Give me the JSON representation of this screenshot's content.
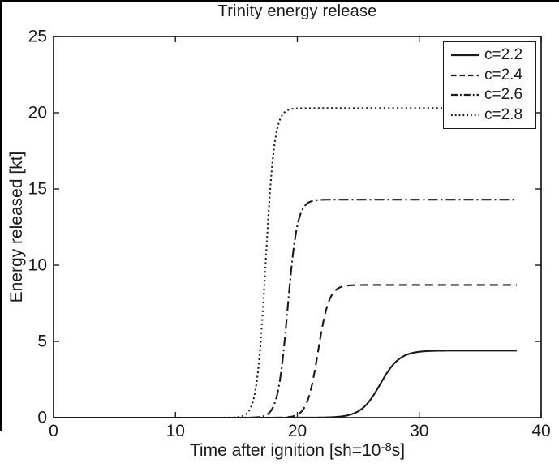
{
  "figure": {
    "title": "Trinity energy release",
    "x_axis": {
      "label_prefix": "Time after ignition [sh=10",
      "label_sup": "-8",
      "label_suffix": "s]",
      "ticks": [
        "0",
        "10",
        "20",
        "30",
        "40"
      ]
    },
    "y_axis": {
      "label": "Energy released [kt]",
      "ticks": [
        "0",
        "5",
        "10",
        "15",
        "20",
        "25"
      ]
    }
  },
  "chart_data": {
    "type": "line",
    "title": "Trinity energy release",
    "xlabel": "Time after ignition [sh=10^-8 s]",
    "ylabel": "Energy released [kt]",
    "xlim": [
      0,
      40
    ],
    "ylim": [
      0,
      25
    ],
    "x_tick_values": [
      0,
      10,
      20,
      30,
      40
    ],
    "y_tick_values": [
      0,
      5,
      10,
      15,
      20,
      25
    ],
    "grid": false,
    "legend_position": "top-right",
    "line_color": "#1a1a1a",
    "background_color": "#ffffff",
    "model": "E(t) = plateau_kt / (1 + exp(-(t - t_mid)/rise_width)), sampled for t in [x_start, x_end]",
    "x_start": 0,
    "x_end": 38,
    "series": [
      {
        "name": "c=2.2",
        "line_style": "solid",
        "plateau_kt": 4.4,
        "t_mid": 26.8,
        "rise_width": 0.8
      },
      {
        "name": "c=2.4",
        "line_style": "dashed",
        "plateau_kt": 8.7,
        "t_mid": 21.7,
        "rise_width": 0.45
      },
      {
        "name": "c=2.6",
        "line_style": "dashdot",
        "plateau_kt": 14.3,
        "t_mid": 19.2,
        "rise_width": 0.4
      },
      {
        "name": "c=2.8",
        "line_style": "dotted",
        "plateau_kt": 20.3,
        "t_mid": 17.4,
        "rise_width": 0.36
      }
    ]
  }
}
